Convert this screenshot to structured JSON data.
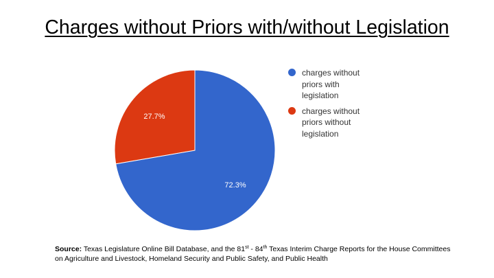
{
  "title": "Charges without Priors with/without Legislation",
  "chart_data": {
    "type": "pie",
    "categories": [
      "charges without priors with legislation",
      "charges without priors without legislation"
    ],
    "values": [
      72.3,
      27.7
    ],
    "labels": [
      "72.3%",
      "27.7%"
    ],
    "colors": [
      "#3366cc",
      "#dc3912"
    ],
    "legend_position": "right"
  },
  "legend": {
    "items": [
      {
        "line1": "charges without",
        "line2": "priors with",
        "line3": "legislation",
        "color": "#3366cc"
      },
      {
        "line1": "charges without",
        "line2": "priors without",
        "line3": "legislation",
        "color": "#dc3912"
      }
    ]
  },
  "source": {
    "label": "Source:",
    "text_a": " Texas Legislature Online Bill Database, and the 81",
    "sup_a": "st",
    "text_b": " - 84",
    "sup_b": "th",
    "text_c": " Texas Interim Charge Reports for the House Committees on Agriculture and Livestock, Homeland Security and Public Safety, and Public Health"
  }
}
